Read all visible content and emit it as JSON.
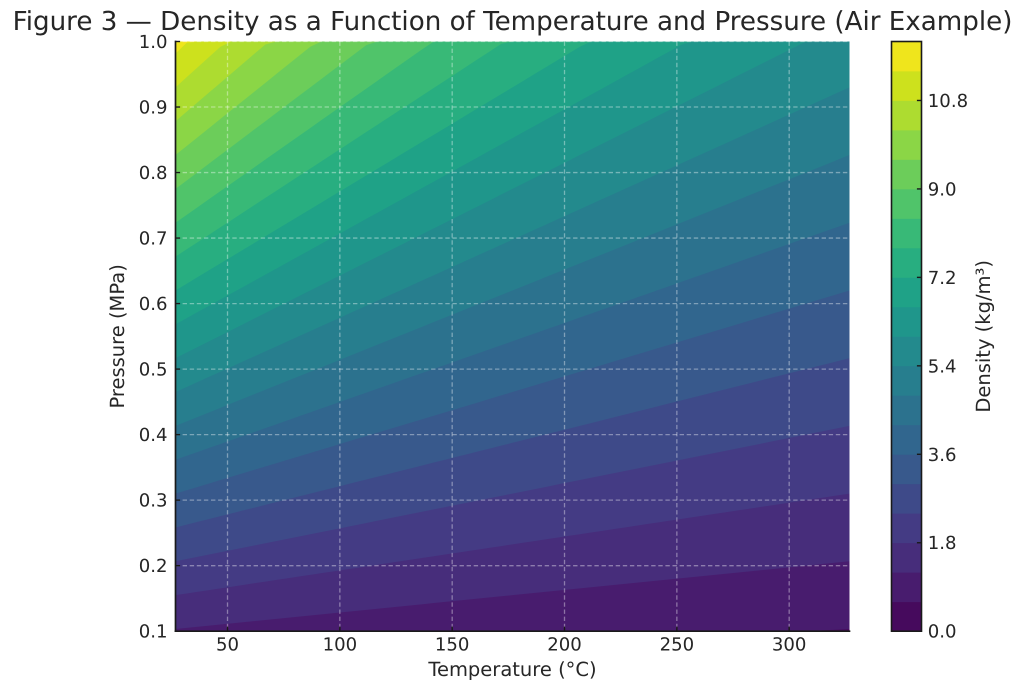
{
  "figure": {
    "title": "Figure 3 — Density as a Function of Temperature and Pressure (Air Example)"
  },
  "chart_data": {
    "type": "heatmap",
    "subtype": "filled_contour",
    "title": "Figure 3 — Density as a Function of Temperature and Pressure (Air Example)",
    "xlabel": "Temperature (°C)",
    "ylabel": "Pressure (MPa)",
    "colorbar_label": "Density (kg/m³)",
    "xlim": [
      26.85,
      326.85
    ],
    "ylim": [
      0.1,
      1.0
    ],
    "clim": [
      0.0,
      12.0
    ],
    "x": [
      26.85,
      31.85,
      36.85,
      41.85,
      46.85,
      51.85,
      56.85,
      61.85,
      66.85,
      71.85,
      76.85,
      81.85,
      86.85,
      91.85,
      96.85,
      101.85,
      106.85,
      111.85,
      116.85,
      121.85,
      126.85,
      131.85,
      136.85,
      141.85,
      146.85,
      151.85,
      156.85,
      161.85,
      166.85,
      171.85,
      176.85,
      181.85,
      186.85,
      191.85,
      196.85,
      201.85,
      206.85,
      211.85,
      216.85,
      221.85,
      226.85,
      231.85,
      236.85,
      241.85,
      246.85,
      251.85,
      256.85,
      261.85,
      266.85,
      271.85,
      276.85,
      281.85,
      286.85,
      291.85,
      296.85,
      301.85,
      306.85,
      311.85,
      316.85,
      321.85,
      326.85
    ],
    "y": [
      0.1,
      0.2,
      0.3,
      0.4,
      0.5,
      0.6,
      0.7,
      0.8,
      0.9,
      1.0
    ],
    "z": [
      [
        1.1612,
        1.1422,
        1.1238,
        1.1059,
        1.0887,
        1.0719,
        1.0557,
        1.0399,
        1.0246,
        1.0098,
        0.9953,
        0.9813,
        0.9677,
        0.9544,
        0.9415,
        0.929,
        0.9168,
        0.9049,
        0.8933,
        0.882,
        0.8709,
        0.8602,
        0.8497,
        0.8394,
        0.8295,
        0.8197,
        0.8102,
        0.8009,
        0.7918,
        0.7829,
        0.7742,
        0.7657,
        0.7573,
        0.7492,
        0.7412,
        0.7334,
        0.7258,
        0.7183,
        0.711,
        0.7038,
        0.6967,
        0.6898,
        0.6831,
        0.6764,
        0.6699,
        0.6636,
        0.6573,
        0.6512,
        0.6451,
        0.6392,
        0.6334,
        0.6277,
        0.6221,
        0.6166,
        0.6112,
        0.6059,
        0.6006,
        0.5955,
        0.5905,
        0.5855,
        0.5806
      ],
      [
        2.3225,
        2.2844,
        2.2476,
        2.2119,
        2.1773,
        2.1438,
        2.1113,
        2.0798,
        2.0492,
        2.0195,
        1.9907,
        1.9627,
        1.9354,
        1.9089,
        1.8831,
        1.858,
        1.8335,
        1.8097,
        1.7865,
        1.7639,
        1.7419,
        1.7204,
        1.6994,
        1.6789,
        1.6589,
        1.6394,
        1.6203,
        1.6017,
        1.5835,
        1.5657,
        1.5483,
        1.5313,
        1.5147,
        1.4984,
        1.4824,
        1.4668,
        1.4515,
        1.4366,
        1.4219,
        1.4076,
        1.3935,
        1.3797,
        1.3662,
        1.3529,
        1.3399,
        1.3271,
        1.3146,
        1.3023,
        1.2903,
        1.2784,
        1.2668,
        1.2554,
        1.2442,
        1.2332,
        1.2224,
        1.2117,
        1.2013,
        1.191,
        1.1809,
        1.171,
        1.1612
      ],
      [
        3.4837,
        3.4266,
        3.3713,
        3.3178,
        3.266,
        3.2157,
        3.167,
        3.1197,
        3.0739,
        3.0293,
        2.986,
        2.944,
        2.9031,
        2.8633,
        2.8246,
        2.787,
        2.7503,
        2.7146,
        2.6798,
        2.6459,
        2.6128,
        2.5805,
        2.5491,
        2.5183,
        2.4884,
        2.4591,
        2.4305,
        2.4026,
        2.3753,
        2.3486,
        2.3225,
        2.297,
        2.272,
        2.2476,
        2.2236,
        2.2002,
        2.1773,
        2.1549,
        2.1329,
        2.1113,
        2.0902,
        2.0695,
        2.0492,
        2.0293,
        2.0098,
        1.9907,
        1.9719,
        1.9535,
        1.9354,
        1.9176,
        1.9002,
        1.8831,
        1.8663,
        1.8498,
        1.8335,
        1.8176,
        1.8019,
        1.7865,
        1.7714,
        1.7565,
        1.7419
      ],
      [
        4.645,
        4.5688,
        4.4951,
        4.4238,
        4.3546,
        4.2876,
        4.2227,
        4.1597,
        4.0985,
        4.0391,
        3.9814,
        3.9253,
        3.8708,
        3.8178,
        3.7662,
        3.716,
        3.6671,
        3.6194,
        3.573,
        3.5278,
        3.4837,
        3.4407,
        3.3987,
        3.3578,
        3.3178,
        3.2788,
        3.2407,
        3.2034,
        3.167,
        3.1314,
        3.0966,
        3.0626,
        3.0293,
        2.9967,
        2.9649,
        2.9337,
        2.9031,
        2.8732,
        2.8438,
        2.8151,
        2.787,
        2.7594,
        2.7323,
        2.7058,
        2.6798,
        2.6543,
        2.6292,
        2.6046,
        2.5805,
        2.5569,
        2.5336,
        2.5108,
        2.4884,
        2.4663,
        2.4447,
        2.4235,
        2.4026,
        2.382,
        2.3618,
        2.342,
        2.3225
      ],
      [
        5.8062,
        5.711,
        5.6189,
        5.5297,
        5.4433,
        5.3596,
        5.2784,
        5.1996,
        5.1231,
        5.0489,
        4.9767,
        4.9066,
        4.8385,
        4.7722,
        4.7077,
        4.645,
        4.5838,
        4.5243,
        4.4663,
        4.4098,
        4.3546,
        4.3009,
        4.2484,
        4.1972,
        4.1473,
        4.0985,
        4.0508,
        4.0043,
        3.9588,
        3.9143,
        3.8708,
        3.8283,
        3.7866,
        3.7459,
        3.7061,
        3.6671,
        3.6289,
        3.5915,
        3.5548,
        3.5189,
        3.4837,
        3.4492,
        3.4154,
        3.3822,
        3.3497,
        3.3178,
        3.2865,
        3.2558,
        3.2257,
        3.1961,
        3.167,
        3.1385,
        3.1105,
        3.0829,
        3.0559,
        3.0293,
        3.0032,
        2.9775,
        2.9523,
        2.9275,
        2.9031
      ],
      [
        6.9674,
        6.8532,
        6.7427,
        6.6356,
        6.532,
        6.4315,
        6.334,
        6.2395,
        6.1477,
        6.0586,
        5.9721,
        5.888,
        5.8062,
        5.7267,
        5.6493,
        5.5739,
        5.5006,
        5.4292,
        5.3596,
        5.2917,
        5.2256,
        5.1611,
        5.0981,
        5.0367,
        4.9767,
        4.9182,
        4.861,
        4.8051,
        4.7505,
        4.6971,
        4.645,
        4.5939,
        4.544,
        4.4951,
        4.4473,
        4.4005,
        4.3546,
        4.3097,
        4.2658,
        4.2227,
        4.1805,
        4.1391,
        4.0985,
        4.0587,
        4.0197,
        3.9814,
        3.9438,
        3.907,
        3.8708,
        3.8353,
        3.8004,
        3.7662,
        3.7326,
        3.6995,
        3.6671,
        3.6352,
        3.6038,
        3.573,
        3.5428,
        3.513,
        3.4837
      ],
      [
        8.1287,
        7.9954,
        7.8665,
        7.7416,
        7.6206,
        7.5034,
        7.3897,
        7.2794,
        7.1724,
        7.0684,
        6.9674,
        6.8693,
        6.7739,
        6.6811,
        6.5908,
        6.5029,
        6.4174,
        6.334,
        6.2528,
        6.1737,
        6.0965,
        6.0212,
        5.9478,
        5.8761,
        5.8062,
        5.7379,
        5.6712,
        5.606,
        5.5423,
        5.48,
        5.4191,
        5.3596,
        5.3013,
        5.2443,
        5.1885,
        5.1339,
        5.0804,
        5.028,
        4.9767,
        4.9265,
        4.8772,
        4.8289,
        4.7816,
        4.7351,
        4.6896,
        4.645,
        4.6011,
        4.5581,
        4.5159,
        4.4745,
        4.4338,
        4.3939,
        4.3546,
        4.3161,
        4.2782,
        4.241,
        4.2045,
        4.1685,
        4.1332,
        4.0985,
        4.0643
      ],
      [
        9.2899,
        9.1376,
        8.9902,
        8.8475,
        8.7093,
        8.5753,
        8.4454,
        8.3193,
        8.197,
        8.0782,
        7.9628,
        7.8506,
        7.7416,
        7.6355,
        7.5324,
        7.4319,
        7.3341,
        7.2389,
        7.1461,
        7.0556,
        6.9674,
        6.8814,
        6.7975,
        6.7156,
        6.6356,
        6.5576,
        6.4813,
        6.4068,
        6.334,
        6.2629,
        6.1933,
        6.1252,
        6.0586,
        5.9935,
        5.9297,
        5.8673,
        5.8062,
        5.7463,
        5.6877,
        5.6302,
        5.5739,
        5.5188,
        5.4646,
        5.4116,
        5.3596,
        5.3085,
        5.2584,
        5.2093,
        5.1611,
        5.1137,
        5.0672,
        5.0216,
        4.9767,
        4.9327,
        4.8894,
        4.8469,
        4.8051,
        4.7641,
        4.7237,
        4.684,
        4.645
      ],
      [
        10.4511,
        10.2798,
        10.114,
        9.9535,
        9.7979,
        9.6472,
        9.501,
        9.3592,
        9.2216,
        9.0879,
        8.9581,
        8.832,
        8.7093,
        8.59,
        8.4739,
        8.3609,
        8.2509,
        8.1437,
        8.0393,
        7.9376,
        7.8384,
        7.7416,
        7.6472,
        7.555,
        7.4651,
        7.3773,
        7.2915,
        7.2077,
        7.1258,
        7.0457,
        6.9674,
        6.8909,
        6.816,
        6.7427,
        6.6709,
        6.6007,
        6.532,
        6.4646,
        6.3987,
        6.334,
        6.2707,
        6.2086,
        6.1477,
        6.088,
        6.0295,
        5.9721,
        5.9157,
        5.8605,
        5.8062,
        5.7529,
        5.7006,
        5.6493,
        5.5988,
        5.5493,
        5.5006,
        5.4528,
        5.4058,
        5.3596,
        5.3141,
        5.2695,
        5.2256
      ],
      [
        11.6124,
        11.422,
        11.2378,
        11.0594,
        10.8866,
        10.7191,
        10.5567,
        10.3991,
        10.2462,
        10.0977,
        9.9535,
        9.8133,
        9.677,
        9.5444,
        9.4154,
        9.2899,
        9.1677,
        9.0486,
        8.9326,
        8.8195,
        8.7093,
        8.6018,
        8.4969,
        8.3945,
        8.2946,
        8.197,
        8.1017,
        8.0085,
        7.9175,
        7.8286,
        7.7416,
        7.6565,
        7.5733,
        7.4919,
        7.4122,
        7.3341,
        7.2577,
        7.1829,
        7.1096,
        7.0378,
        6.9674,
        6.8984,
        6.8308,
        6.7645,
        6.6994,
        6.6356,
        6.573,
        6.5116,
        6.4513,
        6.3921,
        6.334,
        6.277,
        6.2209,
        6.1659,
        6.1118,
        6.0586,
        6.0064,
        5.9551,
        5.9046,
        5.855,
        5.8062
      ]
    ],
    "levels": [
      0.0,
      0.6,
      1.2,
      1.8,
      2.4,
      3.0,
      3.6,
      4.2,
      4.8,
      5.4,
      6.0,
      6.6,
      7.2,
      7.8,
      8.4,
      9.0,
      9.6,
      10.2,
      10.8,
      11.4,
      12.0
    ],
    "band_colors": [
      "#460a5d",
      "#481c6e",
      "#472d7b",
      "#443b84",
      "#3e4a89",
      "#38598c",
      "#31668e",
      "#2c728e",
      "#277e8e",
      "#238a8d",
      "#1f968b",
      "#1fa287",
      "#28ae80",
      "#38b977",
      "#50c46a",
      "#6ccd5a",
      "#8bd646",
      "#addc30",
      "#cde11d",
      "#efe51c"
    ],
    "xticks": [
      50,
      100,
      150,
      200,
      250,
      300
    ],
    "xtick_labels": [
      "50",
      "100",
      "150",
      "200",
      "250",
      "300"
    ],
    "yticks": [
      0.1,
      0.2,
      0.3,
      0.4,
      0.5,
      0.6,
      0.7,
      0.8,
      0.9,
      1.0
    ],
    "ytick_labels": [
      "0.1",
      "0.2",
      "0.3",
      "0.4",
      "0.5",
      "0.6",
      "0.7",
      "0.8",
      "0.9",
      "1.0"
    ],
    "colorbar_ticks": [
      0.0,
      1.8,
      3.6,
      5.4,
      7.2,
      9.0,
      10.8
    ],
    "colorbar_tick_labels": [
      "0.0",
      "1.8",
      "3.6",
      "5.4",
      "7.2",
      "9.0",
      "10.8"
    ],
    "grid": {
      "color": "#ffffff",
      "alpha": 0.38,
      "style": "dashed"
    },
    "colors": {
      "text": "#262626",
      "axis": "#1a1a1a",
      "background": "#ffffff"
    }
  }
}
